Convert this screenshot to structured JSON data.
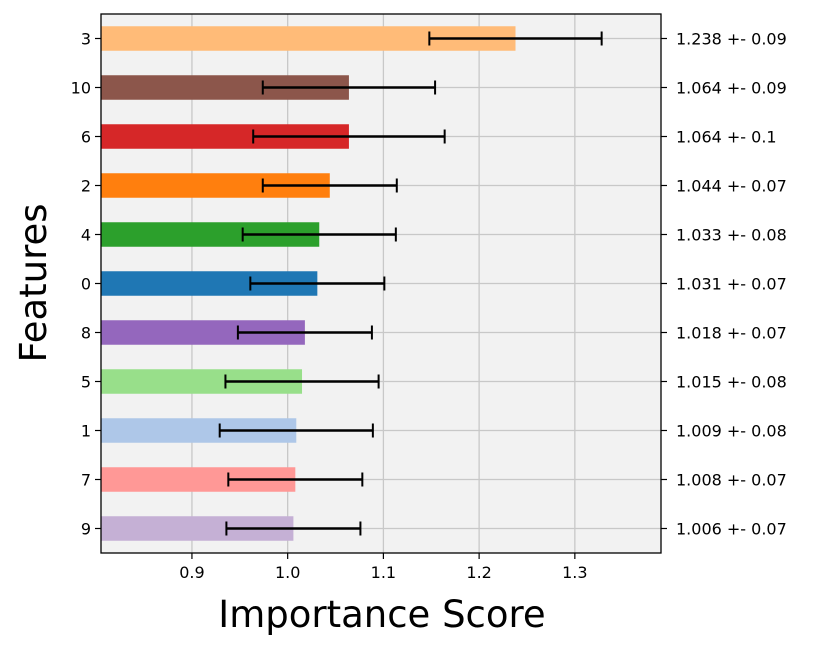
{
  "chart_data": {
    "type": "bar",
    "orientation": "horizontal",
    "xlabel": "Importance Score",
    "ylabel": "Features",
    "xlim": [
      0.805,
      1.39
    ],
    "xticks": [
      0.9,
      1.0,
      1.1,
      1.2,
      1.3
    ],
    "xtick_labels": [
      "0.9",
      "1.0",
      "1.1",
      "1.2",
      "1.3"
    ],
    "grid": true,
    "bars": [
      {
        "feature": "3",
        "value": 1.238,
        "error": 0.09,
        "label": "1.238 +- 0.09",
        "color": "#ffbb78"
      },
      {
        "feature": "10",
        "value": 1.064,
        "error": 0.09,
        "label": "1.064 +- 0.09",
        "color": "#8c564b"
      },
      {
        "feature": "6",
        "value": 1.064,
        "error": 0.1,
        "label": "1.064 +- 0.1",
        "color": "#d62728"
      },
      {
        "feature": "2",
        "value": 1.044,
        "error": 0.07,
        "label": "1.044 +- 0.07",
        "color": "#ff7f0e"
      },
      {
        "feature": "4",
        "value": 1.033,
        "error": 0.08,
        "label": "1.033 +- 0.08",
        "color": "#2ca02c"
      },
      {
        "feature": "0",
        "value": 1.031,
        "error": 0.07,
        "label": "1.031 +- 0.07",
        "color": "#1f77b4"
      },
      {
        "feature": "8",
        "value": 1.018,
        "error": 0.07,
        "label": "1.018 +- 0.07",
        "color": "#9467bd"
      },
      {
        "feature": "5",
        "value": 1.015,
        "error": 0.08,
        "label": "1.015 +- 0.08",
        "color": "#98df8a"
      },
      {
        "feature": "1",
        "value": 1.009,
        "error": 0.08,
        "label": "1.009 +- 0.08",
        "color": "#aec7e8"
      },
      {
        "feature": "7",
        "value": 1.008,
        "error": 0.07,
        "label": "1.008 +- 0.07",
        "color": "#ff9896"
      },
      {
        "feature": "9",
        "value": 1.006,
        "error": 0.07,
        "label": "1.006 +- 0.07",
        "color": "#c5b0d5"
      }
    ]
  }
}
